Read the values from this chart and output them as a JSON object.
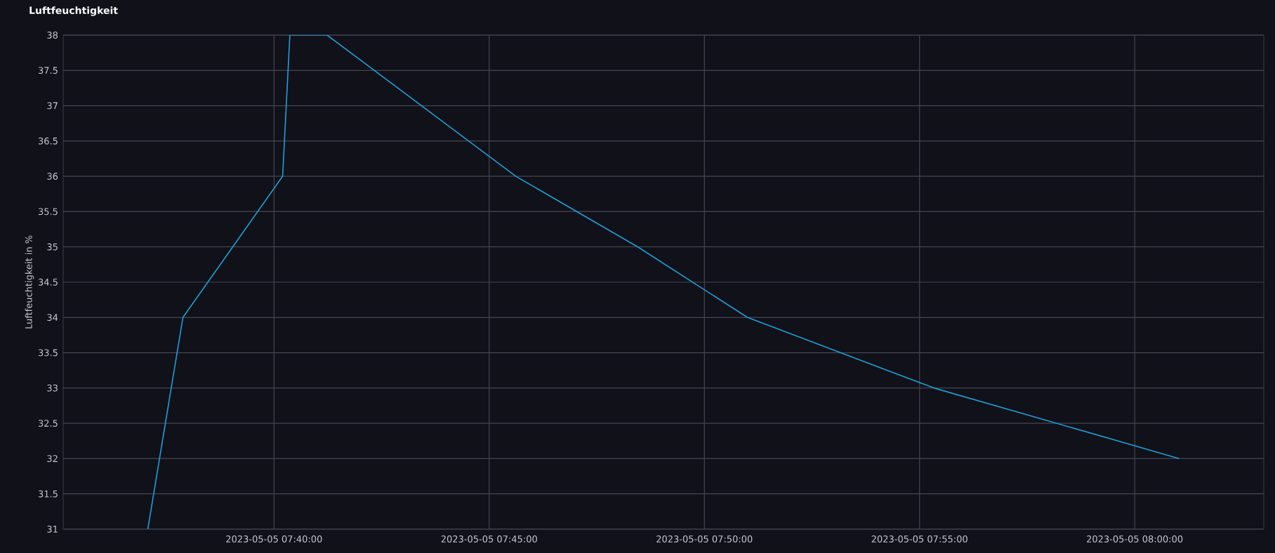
{
  "chart_data": {
    "type": "line",
    "title": "Luftfeuchtigkeit",
    "ylabel": "Luftfeuchtigkeit in %",
    "x": [
      "2023-05-05T07:37:04",
      "2023-05-05T07:37:53",
      "2023-05-05T07:40:12",
      "2023-05-05T07:40:22",
      "2023-05-05T07:41:14",
      "2023-05-05T07:45:37",
      "2023-05-05T07:48:27",
      "2023-05-05T07:51:00",
      "2023-05-05T07:55:20",
      "2023-05-05T08:01:02"
    ],
    "series": [
      {
        "color": "#1f9fd6",
        "values": [
          31,
          34,
          36,
          38,
          38,
          36,
          35,
          34,
          33,
          32
        ]
      }
    ],
    "xlim": [
      "2023-05-05T07:35:06",
      "2023-05-05T08:03:00"
    ],
    "xticks": [
      {
        "value": "2023-05-05T07:40:00",
        "label": "2023-05-05 07:40:00"
      },
      {
        "value": "2023-05-05T07:45:00",
        "label": "2023-05-05 07:45:00"
      },
      {
        "value": "2023-05-05T07:50:00",
        "label": "2023-05-05 07:50:00"
      },
      {
        "value": "2023-05-05T07:55:00",
        "label": "2023-05-05 07:55:00"
      },
      {
        "value": "2023-05-05T08:00:00",
        "label": "2023-05-05 08:00:00"
      }
    ],
    "ylim": [
      31,
      38
    ],
    "yticks": [
      31,
      31.5,
      32,
      32.5,
      33,
      33.5,
      34,
      34.5,
      35,
      35.5,
      36,
      36.5,
      37,
      37.5,
      38
    ],
    "grid": true,
    "marker": "none",
    "line_style": "solid"
  }
}
